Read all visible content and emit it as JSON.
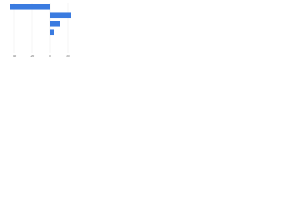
{
  "chart_data": {
    "type": "hbar",
    "categories": [
      null,
      null,
      null,
      null
    ],
    "values": [
      -45,
      24,
      11,
      4
    ],
    "color": "#3a7be0",
    "xlim": [
      -46,
      34
    ],
    "xticks": [
      -40,
      -20,
      0,
      20
    ],
    "grid": true
  }
}
